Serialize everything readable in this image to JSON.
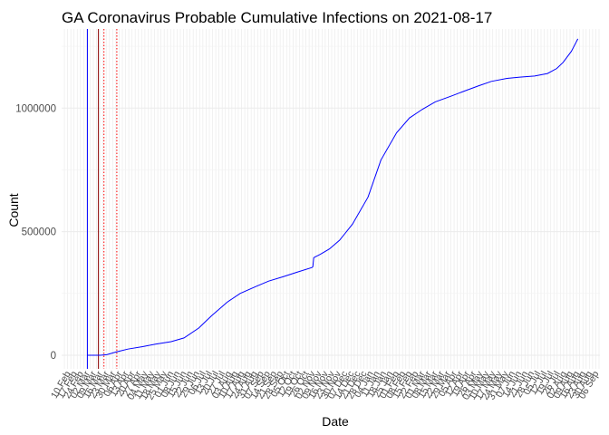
{
  "chart_data": {
    "type": "line",
    "title": "GA Coronavirus Probable Cumulative Infections on 2021-08-17",
    "xlabel": "Date",
    "ylabel": "Count",
    "ylim": [
      -55000,
      1320000
    ],
    "xlim": [
      "2020-02-03",
      "2021-09-10"
    ],
    "grid": true,
    "legend": "none",
    "yticks": [
      0,
      500000,
      1000000
    ],
    "ytick_labels": [
      "0",
      "500000",
      "1000000"
    ],
    "xtick_labels": [
      "10 Feb",
      "17 Feb",
      "24 Feb",
      "02 Mar",
      "09 Mar",
      "16 Mar",
      "23 Mar",
      "30 Mar",
      "06 Apr",
      "13 Apr",
      "20 Apr",
      "27 Apr",
      "04 May",
      "11 May",
      "18 May",
      "25 May",
      "01 Jun",
      "08 Jun",
      "15 Jun",
      "22 Jun",
      "29 Jun",
      "06 Jul",
      "13 Jul",
      "20 Jul",
      "27 Jul",
      "03 Aug",
      "10 Aug",
      "17 Aug",
      "24 Aug",
      "31 Aug",
      "07 Sep",
      "14 Sep",
      "21 Sep",
      "28 Sep",
      "05 Oct",
      "12 Oct",
      "19 Oct",
      "26 Oct",
      "02 Nov",
      "09 Nov",
      "16 Nov",
      "23 Nov",
      "30 Nov",
      "07 Dec",
      "14 Dec",
      "21 Dec",
      "28 Dec",
      "04 Jan",
      "11 Jan",
      "18 Jan",
      "25 Jan",
      "01 Feb",
      "08 Feb",
      "15 Feb",
      "22 Feb",
      "01 Mar",
      "08 Mar",
      "15 Mar",
      "22 Mar",
      "29 Mar",
      "05 Apr",
      "12 Apr",
      "19 Apr",
      "26 Apr",
      "03 May",
      "10 May",
      "17 May",
      "24 May",
      "31 May",
      "07 Jun",
      "14 Jun",
      "21 Jun",
      "28 Jun",
      "05 Jul",
      "12 Jul",
      "19 Jul",
      "26 Jul",
      "02 Aug",
      "09 Aug",
      "16 Aug",
      "23 Aug",
      "30 Aug",
      "06 Sep"
    ],
    "vlines": [
      {
        "date": "2020-03-02",
        "color": "#0000ff",
        "style": "solid"
      },
      {
        "date": "2020-03-14",
        "color": "#8b0000",
        "style": "solid"
      },
      {
        "date": "2020-03-20",
        "color": "#ff0000",
        "style": "dotted"
      },
      {
        "date": "2020-04-03",
        "color": "#ff0000",
        "style": "dotted"
      }
    ],
    "series": [
      {
        "color": "#0000ff",
        "points": [
          [
            "2020-03-02",
            0
          ],
          [
            "2020-03-16",
            0
          ],
          [
            "2020-03-23",
            2500
          ],
          [
            "2020-04-01",
            12000
          ],
          [
            "2020-04-15",
            25000
          ],
          [
            "2020-05-01",
            35000
          ],
          [
            "2020-05-15",
            45000
          ],
          [
            "2020-06-01",
            55000
          ],
          [
            "2020-06-15",
            70000
          ],
          [
            "2020-07-01",
            110000
          ],
          [
            "2020-07-15",
            160000
          ],
          [
            "2020-08-01",
            215000
          ],
          [
            "2020-08-15",
            250000
          ],
          [
            "2020-09-01",
            278000
          ],
          [
            "2020-09-15",
            300000
          ],
          [
            "2020-10-01",
            318000
          ],
          [
            "2020-10-15",
            335000
          ],
          [
            "2020-11-01",
            355000
          ],
          [
            "2020-11-02",
            358000
          ],
          [
            "2020-11-03",
            395000
          ],
          [
            "2020-11-10",
            408000
          ],
          [
            "2020-11-20",
            430000
          ],
          [
            "2020-12-01",
            465000
          ],
          [
            "2020-12-15",
            530000
          ],
          [
            "2021-01-01",
            640000
          ],
          [
            "2021-01-15",
            790000
          ],
          [
            "2021-02-01",
            900000
          ],
          [
            "2021-02-15",
            960000
          ],
          [
            "2021-03-01",
            995000
          ],
          [
            "2021-03-15",
            1025000
          ],
          [
            "2021-04-01",
            1048000
          ],
          [
            "2021-04-15",
            1068000
          ],
          [
            "2021-05-01",
            1090000
          ],
          [
            "2021-05-15",
            1108000
          ],
          [
            "2021-06-01",
            1120000
          ],
          [
            "2021-06-15",
            1125000
          ],
          [
            "2021-07-01",
            1130000
          ],
          [
            "2021-07-15",
            1140000
          ],
          [
            "2021-07-25",
            1160000
          ],
          [
            "2021-08-01",
            1185000
          ],
          [
            "2021-08-10",
            1230000
          ],
          [
            "2021-08-17",
            1280000
          ]
        ]
      }
    ]
  }
}
